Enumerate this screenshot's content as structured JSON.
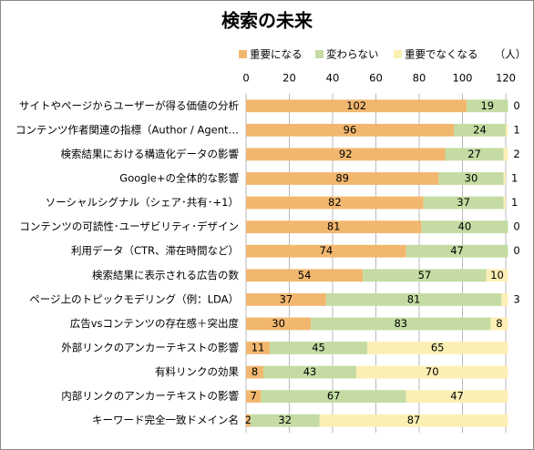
{
  "chart_data": {
    "type": "stacked-bar-horizontal",
    "title": "検索の未来",
    "x_label": "（人）",
    "categories": [
      "サイトやページからユーザーが得る価値の分析",
      "コンテンツ作者関連の指標（Author / Agent…",
      "検索結果における構造化データの影響",
      "Google+の全体的な影響",
      "ソーシャルシグナル（シェア･共有･+1）",
      "コンテンツの可読性･ユーザビリティ･デザイン",
      "利用データ（CTR、滞在時間など）",
      "検索結果に表示される広告の数",
      "ページ上のトピックモデリング（例：LDA）",
      "広告vsコンテンツの存在感＋突出度",
      "外部リンクのアンカーテキストの影響",
      "有料リンクの効果",
      "内部リンクのアンカーテキストの影響",
      "キーワード完全一致ドメイン名"
    ],
    "series": [
      {
        "name": "重要になる",
        "color": "#f2b76f",
        "values": [
          102,
          96,
          92,
          89,
          82,
          81,
          74,
          54,
          37,
          30,
          11,
          8,
          7,
          2
        ]
      },
      {
        "name": "変わらない",
        "color": "#c4dca3",
        "values": [
          19,
          24,
          27,
          30,
          37,
          40,
          47,
          57,
          81,
          83,
          45,
          43,
          67,
          32
        ]
      },
      {
        "name": "重要でなくなる",
        "color": "#fcefb4",
        "values": [
          0,
          1,
          2,
          1,
          1,
          0,
          0,
          10,
          3,
          8,
          65,
          70,
          47,
          87
        ]
      }
    ],
    "xlim": [
      0,
      120
    ],
    "xticks": [
      0,
      20,
      40,
      60,
      80,
      100,
      120
    ],
    "grid": true,
    "legend": "top"
  }
}
